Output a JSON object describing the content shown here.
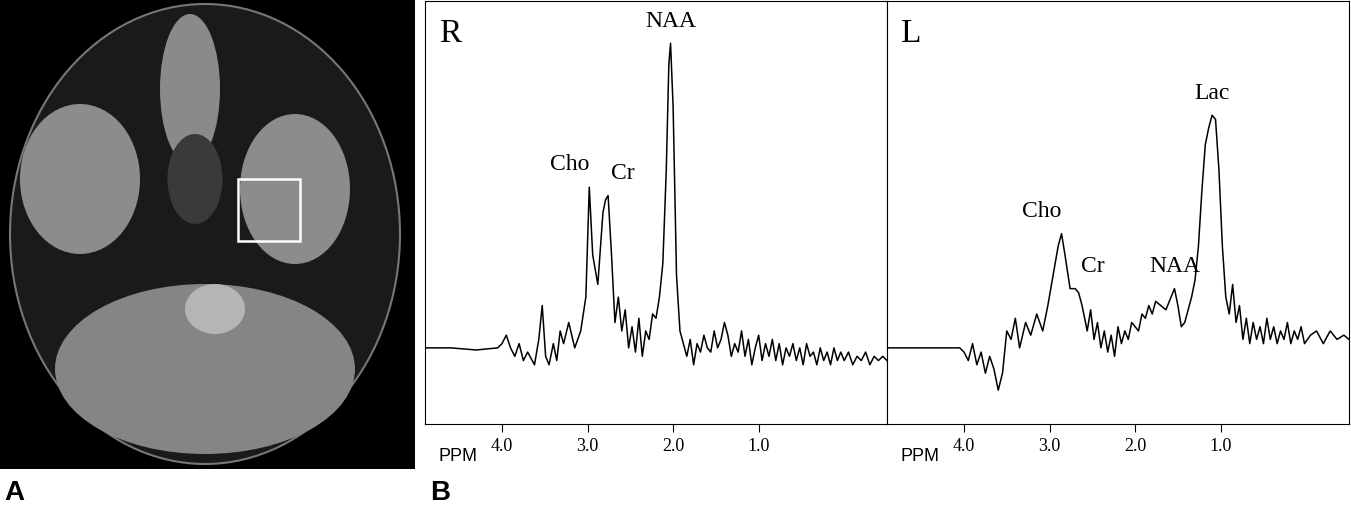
{
  "panel_labels": [
    "A",
    "B"
  ],
  "chart_data": [
    {
      "type": "line",
      "title": "R",
      "xlabel": "PPM",
      "xlim": [
        4.9,
        -0.5
      ],
      "xticks": [
        4.0,
        3.0,
        2.0,
        1.0
      ],
      "ylim": [
        0,
        100
      ],
      "tick_labels": "x",
      "color": "#000000",
      "x": [
        4.9,
        4.6,
        4.3,
        4.05,
        4.0,
        3.95,
        3.9,
        3.85,
        3.8,
        3.75,
        3.7,
        3.62,
        3.57,
        3.53,
        3.49,
        3.45,
        3.4,
        3.36,
        3.32,
        3.28,
        3.22,
        3.15,
        3.08,
        3.02,
        2.98,
        2.94,
        2.88,
        2.82,
        2.79,
        2.76,
        2.72,
        2.68,
        2.64,
        2.6,
        2.56,
        2.52,
        2.48,
        2.44,
        2.4,
        2.36,
        2.32,
        2.28,
        2.24,
        2.2,
        2.16,
        2.12,
        2.08,
        2.05,
        2.03,
        2.0,
        1.96,
        1.92,
        1.88,
        1.84,
        1.8,
        1.76,
        1.72,
        1.68,
        1.64,
        1.6,
        1.56,
        1.52,
        1.48,
        1.44,
        1.4,
        1.36,
        1.32,
        1.28,
        1.24,
        1.2,
        1.16,
        1.12,
        1.08,
        1.04,
        1.0,
        0.96,
        0.92,
        0.88,
        0.84,
        0.8,
        0.76,
        0.72,
        0.68,
        0.64,
        0.6,
        0.56,
        0.52,
        0.48,
        0.44,
        0.4,
        0.36,
        0.32,
        0.28,
        0.24,
        0.2,
        0.16,
        0.12,
        0.08,
        0.04,
        0.0,
        -0.05,
        -0.1,
        -0.15,
        -0.2,
        -0.25,
        -0.3,
        -0.35,
        -0.4,
        -0.45,
        -0.5
      ],
      "values": [
        18,
        18,
        17.5,
        18,
        19,
        21,
        18,
        16,
        19,
        15,
        17,
        14,
        20,
        28,
        16,
        14,
        19,
        15,
        22,
        19,
        24,
        18,
        22,
        30,
        56,
        40,
        33,
        50,
        53,
        54,
        40,
        24,
        30,
        22,
        27,
        18,
        23,
        17,
        25,
        16,
        22,
        20,
        26,
        25,
        30,
        38,
        60,
        85,
        90,
        75,
        35,
        22,
        19,
        16,
        20,
        14,
        19,
        17,
        21,
        18,
        17,
        22,
        18,
        20,
        24,
        21,
        16,
        19,
        17,
        22,
        16,
        20,
        14,
        18,
        21,
        15,
        19,
        16,
        20,
        15,
        19,
        14,
        18,
        16,
        19,
        15,
        18,
        14,
        19,
        16,
        17,
        14,
        18,
        15,
        17,
        14,
        18,
        15,
        17,
        15,
        17,
        14,
        16,
        15,
        17,
        14,
        16,
        15,
        16,
        15
      ],
      "peak_labels": [
        {
          "text": "Cho",
          "x": 2.98,
          "y": 56
        },
        {
          "text": "Cr",
          "x": 2.76,
          "y": 54
        },
        {
          "text": "NAA",
          "x": 2.03,
          "y": 90
        }
      ]
    },
    {
      "type": "line",
      "title": "L",
      "xlabel": "PPM",
      "xlim": [
        4.9,
        -0.5
      ],
      "xticks": [
        4.0,
        3.0,
        2.0,
        1.0
      ],
      "ylim": [
        0,
        100
      ],
      "tick_labels": "x",
      "color": "#000000",
      "x": [
        4.9,
        4.6,
        4.3,
        4.05,
        4.0,
        3.95,
        3.9,
        3.85,
        3.8,
        3.75,
        3.7,
        3.65,
        3.6,
        3.55,
        3.5,
        3.45,
        3.4,
        3.35,
        3.28,
        3.22,
        3.15,
        3.08,
        3.02,
        2.96,
        2.9,
        2.86,
        2.82,
        2.76,
        2.7,
        2.66,
        2.62,
        2.56,
        2.52,
        2.48,
        2.44,
        2.4,
        2.36,
        2.32,
        2.28,
        2.24,
        2.2,
        2.16,
        2.12,
        2.08,
        2.04,
        2.0,
        1.96,
        1.92,
        1.88,
        1.84,
        1.8,
        1.76,
        1.7,
        1.64,
        1.58,
        1.54,
        1.5,
        1.46,
        1.42,
        1.38,
        1.34,
        1.3,
        1.26,
        1.22,
        1.18,
        1.14,
        1.1,
        1.06,
        1.02,
        0.98,
        0.94,
        0.9,
        0.86,
        0.82,
        0.78,
        0.74,
        0.7,
        0.66,
        0.62,
        0.58,
        0.54,
        0.5,
        0.46,
        0.42,
        0.38,
        0.34,
        0.3,
        0.26,
        0.22,
        0.18,
        0.14,
        0.1,
        0.06,
        0.02,
        -0.05,
        -0.12,
        -0.2,
        -0.28,
        -0.36,
        -0.44,
        -0.5
      ],
      "values": [
        18,
        18,
        18,
        18,
        17,
        15,
        19,
        14,
        17,
        12,
        16,
        13,
        8,
        12,
        22,
        20,
        25,
        18,
        24,
        21,
        26,
        22,
        28,
        35,
        42,
        45,
        40,
        32,
        32,
        31,
        28,
        22,
        27,
        20,
        24,
        18,
        22,
        17,
        21,
        16,
        23,
        19,
        22,
        20,
        24,
        23,
        22,
        26,
        25,
        28,
        26,
        29,
        28,
        27,
        30,
        32,
        28,
        23,
        24,
        27,
        30,
        34,
        42,
        55,
        66,
        70,
        73,
        72,
        60,
        42,
        30,
        26,
        33,
        24,
        28,
        20,
        25,
        19,
        24,
        20,
        23,
        19,
        25,
        20,
        23,
        19,
        22,
        20,
        24,
        19,
        22,
        20,
        23,
        19,
        21,
        22,
        19,
        22,
        20,
        21,
        20
      ],
      "peak_labels": [
        {
          "text": "Cho",
          "x": 2.86,
          "y": 45
        },
        {
          "text": "Cr",
          "x": 2.66,
          "y": 32
        },
        {
          "text": "NAA",
          "x": 1.54,
          "y": 32
        },
        {
          "text": "Lac",
          "x": 1.1,
          "y": 73
        }
      ]
    }
  ]
}
